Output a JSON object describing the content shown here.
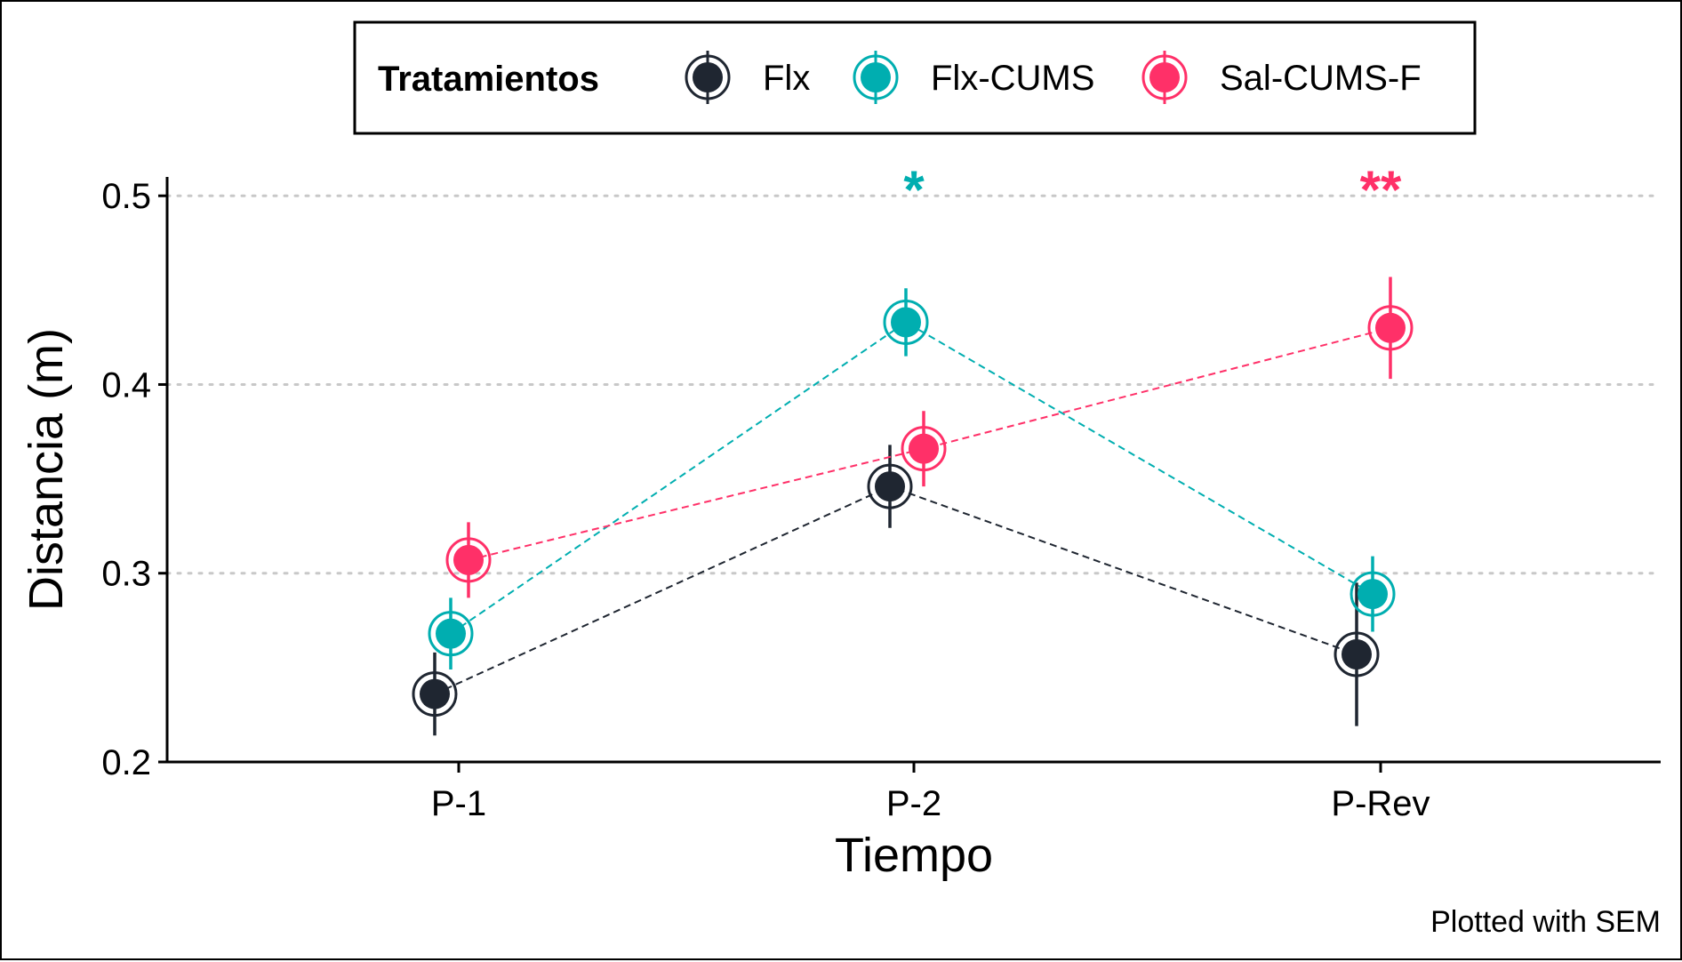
{
  "chart_data": {
    "type": "line",
    "categories": [
      "P-1",
      "P-2",
      "P-Rev"
    ],
    "xlabel": "Tiempo",
    "ylabel": "Distancia (m)",
    "ylim": [
      0.2,
      0.51
    ],
    "yticks": [
      0.2,
      0.3,
      0.4,
      0.5
    ],
    "ytick_labels": [
      "0.2",
      "0.3",
      "0.4",
      "0.5"
    ],
    "grid": "horizontal dotted",
    "legend": {
      "title": "Tratamientos",
      "placement": "top"
    },
    "caption": "Plotted with SEM",
    "series": [
      {
        "name": "Flx",
        "color": "#1f2631",
        "values": [
          0.236,
          0.346,
          0.257
        ],
        "sem": [
          0.022,
          0.022,
          0.038
        ]
      },
      {
        "name": "Flx-CUMS",
        "color": "#00aeb0",
        "values": [
          0.268,
          0.433,
          0.289
        ],
        "sem": [
          0.019,
          0.018,
          0.02
        ]
      },
      {
        "name": "Sal-CUMS-F",
        "color": "#ff3068",
        "values": [
          0.307,
          0.366,
          0.43
        ],
        "sem": [
          0.02,
          0.02,
          0.027
        ]
      }
    ],
    "annotations": [
      {
        "text": "*",
        "category": "P-2",
        "color": "#00aeb0"
      },
      {
        "text": "**",
        "category": "P-Rev",
        "color": "#ff3068"
      }
    ]
  }
}
